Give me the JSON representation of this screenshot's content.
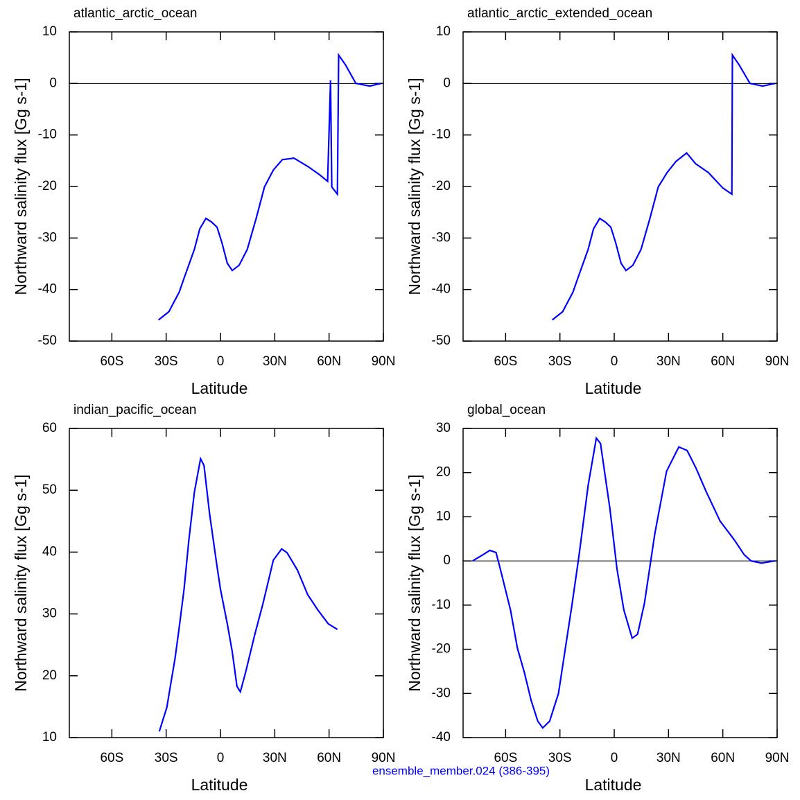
{
  "chart_data": [
    {
      "type": "line",
      "title": "atlantic_arctic_ocean",
      "xlabel": "Latitude",
      "ylabel": "Northward salinity flux [Gg s-1]",
      "color": "#0000ff",
      "x": [
        -34.2,
        -28.5,
        -22.8,
        -20.1,
        -14.4,
        -11.4,
        -8,
        -4.9,
        -1.9,
        0.8,
        3.8,
        6.5,
        10.3,
        14.8,
        19.7,
        24.3,
        29.2,
        34.2,
        40.6,
        48.2,
        54.7,
        59.2,
        60.8,
        61.5,
        64.6,
        65.3,
        69.1,
        74.8,
        82.4,
        88.9
      ],
      "values": [
        -45.9,
        -44.3,
        -40.5,
        -37.8,
        -32.2,
        -28.2,
        -26.2,
        -26.9,
        -27.9,
        -30.9,
        -34.9,
        -36.3,
        -35.3,
        -32.2,
        -26.2,
        -20.1,
        -16.8,
        -14.8,
        -14.5,
        -16.1,
        -17.7,
        -19.0,
        0.6,
        -20.1,
        -21.5,
        5.5,
        3.6,
        0,
        -0.5,
        0
      ],
      "xlim": [
        -83.5,
        90
      ],
      "ylim": [
        -50,
        10
      ],
      "zero_line": 0,
      "xticks": [
        {
          "value": -60,
          "label": "60S"
        },
        {
          "value": -30,
          "label": "30S"
        },
        0,
        {
          "value": 30,
          "label": "30N"
        },
        {
          "value": 60,
          "label": "60N"
        },
        {
          "value": 90,
          "label": "90N"
        }
      ],
      "yticks": [
        -50,
        -40,
        -30,
        -20,
        -10,
        0,
        10
      ]
    },
    {
      "type": "line",
      "title": "atlantic_arctic_extended_ocean",
      "xlabel": "Latitude",
      "ylabel": "Northward salinity flux [Gg s-1]",
      "color": "#0000ff",
      "x": [
        -34.2,
        -28.5,
        -22.8,
        -20.1,
        -14.4,
        -11.4,
        -8,
        -4.9,
        -1.9,
        0.8,
        3.8,
        6.5,
        10.3,
        14.8,
        19.7,
        24.3,
        29.2,
        34.2,
        40,
        45,
        52,
        60,
        65,
        65.3,
        69,
        75,
        82,
        89
      ],
      "values": [
        -45.9,
        -44.3,
        -40.5,
        -37.8,
        -32.2,
        -28.2,
        -26.2,
        -26.9,
        -27.9,
        -30.9,
        -34.9,
        -36.3,
        -35.3,
        -32.2,
        -26.2,
        -20.1,
        -17.3,
        -15.1,
        -13.5,
        -15.6,
        -17.3,
        -20.3,
        -21.5,
        5.5,
        3.6,
        0,
        -0.5,
        0
      ],
      "xlim": [
        -83.5,
        90
      ],
      "ylim": [
        -50,
        10
      ],
      "zero_line": 0,
      "xticks": [
        {
          "value": -60,
          "label": "60S"
        },
        {
          "value": -30,
          "label": "30S"
        },
        0,
        {
          "value": 30,
          "label": "30N"
        },
        {
          "value": 60,
          "label": "60N"
        },
        {
          "value": 90,
          "label": "90N"
        }
      ],
      "yticks": [
        -50,
        -40,
        -30,
        -20,
        -10,
        0,
        10
      ]
    },
    {
      "type": "line",
      "title": "indian_pacific_ocean",
      "xlabel": "Latitude",
      "ylabel": "Northward salinity flux [Gg s-1]",
      "color": "#0000ff",
      "x": [
        -33.8,
        -29.6,
        -27.7,
        -25.1,
        -22.8,
        -20.1,
        -17.5,
        -14.4,
        -11,
        -9.1,
        -6.1,
        -2.3,
        0,
        3.8,
        6.5,
        9.1,
        11,
        14,
        19,
        23.5,
        29.2,
        33.8,
        36.8,
        42.5,
        48.2,
        53.9,
        59.6,
        64.6
      ],
      "values": [
        11.0,
        14.9,
        18.3,
        22.8,
        27.8,
        34.0,
        41.8,
        49.7,
        55.1,
        54.0,
        46.4,
        38.5,
        34.0,
        28.4,
        23.9,
        18.3,
        17.4,
        20.7,
        26.7,
        31.7,
        38.7,
        40.5,
        39.9,
        37.1,
        33.1,
        30.6,
        28.4,
        27.5
      ],
      "xlim": [
        -83.5,
        90
      ],
      "ylim": [
        10,
        60
      ],
      "xticks": [
        {
          "value": -60,
          "label": "60S"
        },
        {
          "value": -30,
          "label": "30S"
        },
        0,
        {
          "value": 30,
          "label": "30N"
        },
        {
          "value": 60,
          "label": "60N"
        },
        {
          "value": 90,
          "label": "90N"
        }
      ],
      "yticks": [
        10,
        20,
        30,
        40,
        50,
        60
      ]
    },
    {
      "type": "line",
      "title": "global_ocean",
      "xlabel": "Latitude",
      "ylabel": "Northward salinity flux [Gg s-1]",
      "color": "#0000ff",
      "x": [
        -78.2,
        -72.5,
        -68.7,
        -65.3,
        -63,
        -57.3,
        -53.5,
        -49.7,
        -45.9,
        -42.2,
        -39.5,
        -35.7,
        -30.8,
        -27,
        -23.2,
        -19.4,
        -14.4,
        -9.9,
        -7.6,
        -2.3,
        1.5,
        5.3,
        9.9,
        12.9,
        16.7,
        22.4,
        28.9,
        35.7,
        40.3,
        45.2,
        50.9,
        58.5,
        66.1,
        71.8,
        75.6,
        81.3,
        88.9
      ],
      "values": [
        0,
        1.4,
        2.4,
        1.9,
        -1.7,
        -11.1,
        -19.7,
        -25.2,
        -31.6,
        -36.3,
        -37.8,
        -36.3,
        -30.0,
        -19.8,
        -9.6,
        1.4,
        17.1,
        27.8,
        26.6,
        11.6,
        -1.7,
        -11.1,
        -17.5,
        -16.6,
        -9.6,
        6.1,
        20.3,
        25.8,
        25.0,
        21.0,
        15.6,
        9.0,
        4.9,
        1.4,
        0,
        -0.5,
        0
      ],
      "xlim": [
        -83.5,
        90
      ],
      "ylim": [
        -40,
        30
      ],
      "zero_line": 0,
      "xticks": [
        {
          "value": -60,
          "label": "60S"
        },
        {
          "value": -30,
          "label": "30S"
        },
        0,
        {
          "value": 30,
          "label": "30N"
        },
        {
          "value": 60,
          "label": "60N"
        },
        {
          "value": 90,
          "label": "90N"
        }
      ],
      "yticks": [
        -40,
        -30,
        -20,
        -10,
        0,
        10,
        20,
        30
      ]
    }
  ],
  "annotation": "ensemble_member.024 (386-395)"
}
